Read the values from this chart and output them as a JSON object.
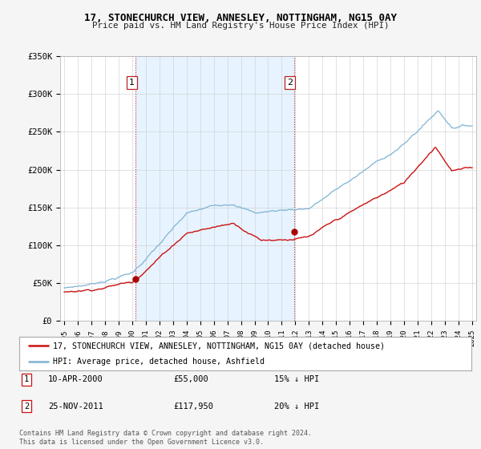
{
  "title": "17, STONECHURCH VIEW, ANNESLEY, NOTTINGHAM, NG15 0AY",
  "subtitle": "Price paid vs. HM Land Registry's House Price Index (HPI)",
  "ylim": [
    0,
    350000
  ],
  "yticks": [
    0,
    50000,
    100000,
    150000,
    200000,
    250000,
    300000,
    350000
  ],
  "ytick_labels": [
    "£0",
    "£50K",
    "£100K",
    "£150K",
    "£200K",
    "£250K",
    "£300K",
    "£350K"
  ],
  "hpi_color": "#7fb3d3",
  "price_color": "#cc1111",
  "marker_color": "#aa0000",
  "sale1_date": 2000.27,
  "sale1_price": 55000,
  "sale2_date": 2011.9,
  "sale2_price": 117950,
  "legend_price_label": "17, STONECHURCH VIEW, ANNESLEY, NOTTINGHAM, NG15 0AY (detached house)",
  "legend_hpi_label": "HPI: Average price, detached house, Ashfield",
  "note1_date": "10-APR-2000",
  "note1_price": "£55,000",
  "note1_pct": "15% ↓ HPI",
  "note2_date": "25-NOV-2011",
  "note2_price": "£117,950",
  "note2_pct": "20% ↓ HPI",
  "footer": "Contains HM Land Registry data © Crown copyright and database right 2024.\nThis data is licensed under the Open Government Licence v3.0.",
  "background_color": "#f5f5f5",
  "plot_bg_color": "#ffffff",
  "shade_color": "#ddeeff",
  "grid_color": "#cccccc"
}
